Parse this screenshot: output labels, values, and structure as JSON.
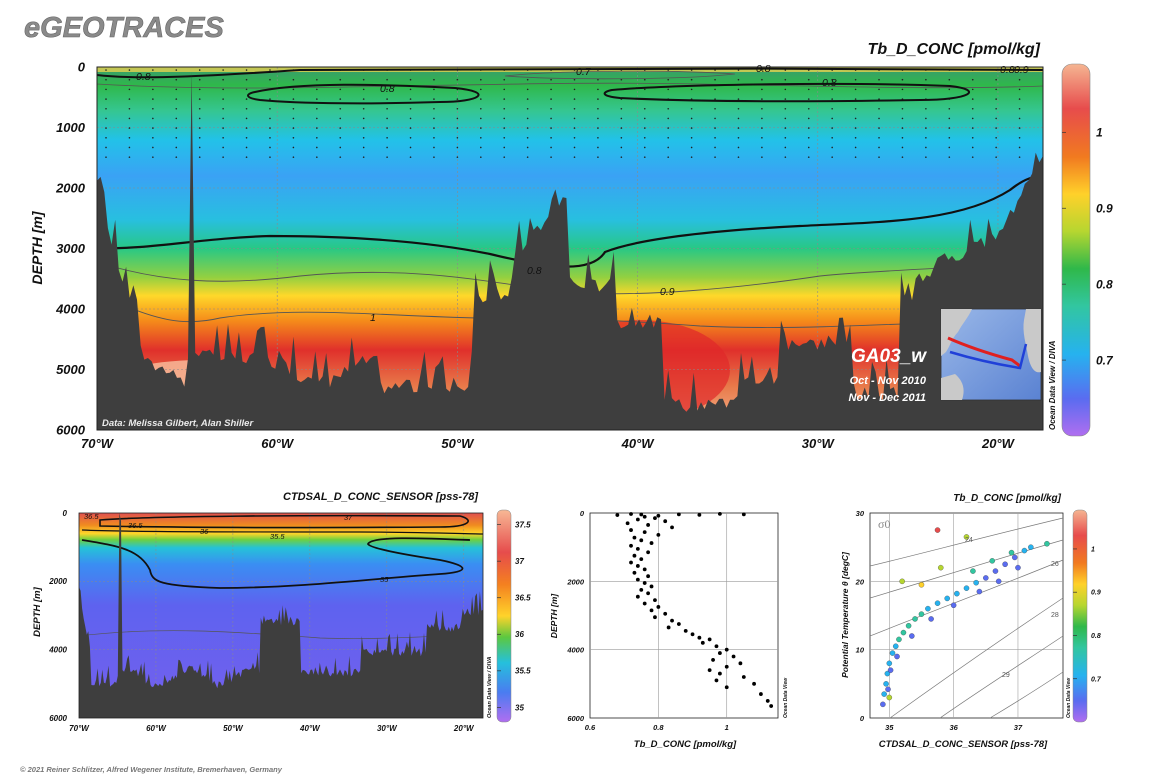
{
  "header": {
    "brand": "eGEOTRACES",
    "footer": "© 2021 Reiner Schlitzer, Alfred Wegener Institute, Bremerhaven, Germany"
  },
  "colors": {
    "land": "#3e3e3e",
    "contour": "#111111",
    "thin_contour": "#555555",
    "grid": "#8a8a8a"
  },
  "chart_data": [
    {
      "id": "main-section",
      "type": "heatmap",
      "title": "Tb_D_CONC [pmol/kg]",
      "ylabel": "DEPTH [m]",
      "xlim": [
        -70,
        -17.5
      ],
      "ylim": [
        6000,
        0
      ],
      "yticks": [
        0,
        1000,
        2000,
        3000,
        4000,
        5000,
        6000
      ],
      "xticks": [
        -70,
        -60,
        -50,
        -40,
        -30,
        -20
      ],
      "xtick_labels": [
        "70°W",
        "60°W",
        "50°W",
        "40°W",
        "30°W",
        "20°W"
      ],
      "colorbar": {
        "min": 0.6,
        "max": 1.09,
        "ticks": [
          0.7,
          0.8,
          0.9,
          1
        ],
        "tick_labels": [
          "0.7",
          "0.8",
          "0.9",
          "1"
        ]
      },
      "contour_labels": [
        "0.8",
        "0.7",
        "0.8",
        "0.8",
        "0.8",
        "0.8",
        "0.9",
        "0.8",
        "0.9",
        "1"
      ],
      "cruise": {
        "name": "GA03_w",
        "dates": [
          "Oct - Nov 2010",
          "Nov - Dec 2011"
        ]
      },
      "credit": "Data: Melissa Gilbert, Alan Shiller",
      "side_label": "Ocean Data View / DIVA"
    },
    {
      "id": "salinity-section",
      "type": "heatmap",
      "title": "CTDSAL_D_CONC_SENSOR [pss-78]",
      "ylabel": "DEPTH [m]",
      "xlim": [
        -70,
        -17.5
      ],
      "ylim": [
        6000,
        0
      ],
      "yticks": [
        0,
        2000,
        4000,
        6000
      ],
      "xticks": [
        -70,
        -60,
        -50,
        -40,
        -30,
        -20
      ],
      "xtick_labels": [
        "70°W",
        "60°W",
        "50°W",
        "40°W",
        "30°W",
        "20°W"
      ],
      "colorbar": {
        "min": 34.8,
        "max": 37.7,
        "ticks": [
          35,
          35.5,
          36,
          36.5,
          37,
          37.5
        ],
        "tick_labels": [
          "35",
          "35.5",
          "36",
          "36.5",
          "37",
          "37.5"
        ]
      },
      "contour_labels": [
        "36.5",
        "36.5",
        "36",
        "35.5",
        "37",
        "35"
      ],
      "side_label": "Ocean Data View / DIVA"
    },
    {
      "id": "profile-scatter",
      "type": "scatter",
      "xlabel": "Tb_D_CONC [pmol/kg]",
      "ylabel": "DEPTH [m]",
      "xlim": [
        0.6,
        1.15
      ],
      "ylim": [
        6000,
        0
      ],
      "xticks": [
        0.6,
        0.8,
        1
      ],
      "xtick_labels": [
        "0.6",
        "0.8",
        "1"
      ],
      "yticks": [
        0,
        2000,
        4000,
        6000
      ],
      "points": [
        [
          0.72,
          30
        ],
        [
          0.75,
          45
        ],
        [
          0.68,
          60
        ],
        [
          0.8,
          80
        ],
        [
          0.86,
          40
        ],
        [
          0.92,
          55
        ],
        [
          0.98,
          25
        ],
        [
          1.05,
          40
        ],
        [
          0.76,
          110
        ],
        [
          0.79,
          150
        ],
        [
          0.74,
          190
        ],
        [
          0.82,
          240
        ],
        [
          0.71,
          300
        ],
        [
          0.77,
          350
        ],
        [
          0.84,
          420
        ],
        [
          0.72,
          500
        ],
        [
          0.76,
          560
        ],
        [
          0.8,
          640
        ],
        [
          0.73,
          720
        ],
        [
          0.75,
          800
        ],
        [
          0.78,
          880
        ],
        [
          0.72,
          960
        ],
        [
          0.74,
          1050
        ],
        [
          0.77,
          1150
        ],
        [
          0.73,
          1250
        ],
        [
          0.75,
          1350
        ],
        [
          0.72,
          1450
        ],
        [
          0.74,
          1550
        ],
        [
          0.76,
          1650
        ],
        [
          0.73,
          1750
        ],
        [
          0.77,
          1850
        ],
        [
          0.74,
          1950
        ],
        [
          0.76,
          2050
        ],
        [
          0.78,
          2150
        ],
        [
          0.75,
          2250
        ],
        [
          0.77,
          2350
        ],
        [
          0.74,
          2450
        ],
        [
          0.79,
          2550
        ],
        [
          0.76,
          2650
        ],
        [
          0.8,
          2750
        ],
        [
          0.78,
          2850
        ],
        [
          0.82,
          2950
        ],
        [
          0.79,
          3050
        ],
        [
          0.84,
          3150
        ],
        [
          0.86,
          3250
        ],
        [
          0.83,
          3350
        ],
        [
          0.88,
          3450
        ],
        [
          0.9,
          3550
        ],
        [
          0.92,
          3650
        ],
        [
          0.95,
          3700
        ],
        [
          0.93,
          3800
        ],
        [
          0.97,
          3900
        ],
        [
          1.0,
          4000
        ],
        [
          0.98,
          4100
        ],
        [
          1.02,
          4200
        ],
        [
          0.96,
          4300
        ],
        [
          1.04,
          4400
        ],
        [
          1.0,
          4500
        ],
        [
          0.95,
          4600
        ],
        [
          0.98,
          4700
        ],
        [
          1.05,
          4800
        ],
        [
          0.97,
          4900
        ],
        [
          1.08,
          5000
        ],
        [
          1.0,
          5100
        ],
        [
          1.1,
          5300
        ],
        [
          1.12,
          5500
        ],
        [
          1.13,
          5650
        ]
      ],
      "side_label": "Ocean Data View"
    },
    {
      "id": "ts-diagram",
      "type": "scatter",
      "title": "Tb_D_CONC [pmol/kg]",
      "xlabel": "CTDSAL_D_CONC_SENSOR [pss-78]",
      "ylabel": "Potential Temperature θ [degC]",
      "xlim": [
        34.7,
        37.7
      ],
      "ylim": [
        0,
        30
      ],
      "xticks": [
        35,
        36,
        37
      ],
      "xtick_labels": [
        "35",
        "36",
        "37"
      ],
      "yticks": [
        0,
        10,
        20,
        30
      ],
      "isopycnal_symbol": "σ0",
      "isopycnal_labels": [
        "24",
        "26",
        "28",
        "29"
      ],
      "colorbar": {
        "min": 0.6,
        "max": 1.09,
        "ticks": [
          0.7,
          0.8,
          0.9,
          1
        ],
        "tick_labels": [
          "0.7",
          "0.8",
          "0.9",
          "1"
        ]
      },
      "points": [
        [
          34.9,
          2.0,
          0.72
        ],
        [
          34.92,
          3.5,
          0.74
        ],
        [
          34.95,
          5.0,
          0.75
        ],
        [
          34.97,
          6.5,
          0.76
        ],
        [
          35.0,
          8.0,
          0.77
        ],
        [
          35.05,
          9.5,
          0.78
        ],
        [
          35.1,
          10.5,
          0.79
        ],
        [
          35.15,
          11.5,
          0.8
        ],
        [
          35.22,
          12.5,
          0.8
        ],
        [
          35.3,
          13.5,
          0.81
        ],
        [
          35.4,
          14.5,
          0.82
        ],
        [
          35.5,
          15.2,
          0.8
        ],
        [
          35.6,
          16.0,
          0.79
        ],
        [
          35.75,
          16.8,
          0.78
        ],
        [
          35.9,
          17.5,
          0.77
        ],
        [
          36.05,
          18.2,
          0.76
        ],
        [
          36.2,
          19.0,
          0.75
        ],
        [
          36.35,
          19.8,
          0.74
        ],
        [
          36.5,
          20.5,
          0.73
        ],
        [
          36.65,
          21.5,
          0.72
        ],
        [
          36.8,
          22.5,
          0.71
        ],
        [
          36.95,
          23.5,
          0.72
        ],
        [
          37.1,
          24.5,
          0.75
        ],
        [
          36.3,
          21.5,
          0.8
        ],
        [
          36.6,
          23.0,
          0.82
        ],
        [
          36.9,
          24.2,
          0.84
        ],
        [
          37.2,
          25.0,
          0.78
        ],
        [
          37.45,
          25.5,
          0.8
        ],
        [
          35.8,
          22.0,
          0.9
        ],
        [
          35.5,
          19.5,
          0.95
        ],
        [
          35.2,
          20.0,
          0.93
        ],
        [
          35.75,
          27.5,
          1.05
        ],
        [
          36.2,
          26.5,
          0.92
        ],
        [
          35.0,
          3.0,
          0.92
        ],
        [
          34.98,
          4.2,
          0.7
        ],
        [
          35.02,
          7.0,
          0.69
        ],
        [
          35.12,
          9.0,
          0.71
        ],
        [
          35.35,
          12.0,
          0.72
        ],
        [
          35.65,
          14.5,
          0.73
        ],
        [
          36.0,
          16.5,
          0.72
        ],
        [
          36.4,
          18.5,
          0.7
        ],
        [
          36.7,
          20.0,
          0.71
        ],
        [
          37.0,
          22.0,
          0.7
        ]
      ],
      "side_label": "Ocean Data View"
    }
  ]
}
